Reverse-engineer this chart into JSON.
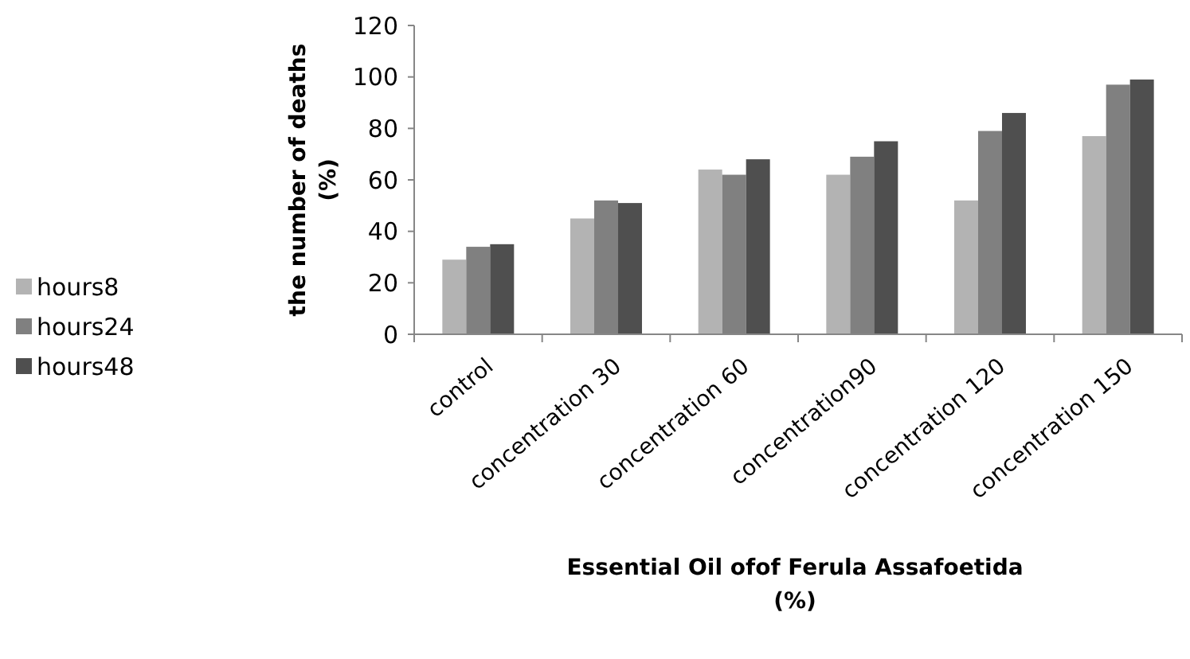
{
  "chart_data": {
    "type": "bar",
    "xlabel": "Essential  Oil ofof Ferula Assafoetida\n(%)",
    "ylabel": "the number of deaths\n(%)",
    "categories": [
      "control",
      "concentration 30",
      "concentration 60",
      "concentration90",
      "concentration 120",
      "concentration 150"
    ],
    "series": [
      {
        "name": "hours8",
        "color": "#b3b3b3",
        "values": [
          29,
          45,
          64,
          62,
          52,
          77
        ]
      },
      {
        "name": "hours24",
        "color": "#808080",
        "values": [
          34,
          52,
          62,
          69,
          79,
          97
        ]
      },
      {
        "name": "hours48",
        "color": "#4f4f4f",
        "values": [
          35,
          51,
          68,
          75,
          86,
          99
        ]
      }
    ],
    "ylim": [
      0,
      120
    ],
    "yticks": [
      0,
      20,
      40,
      60,
      80,
      100,
      120
    ],
    "grid": false,
    "legend": "left"
  }
}
